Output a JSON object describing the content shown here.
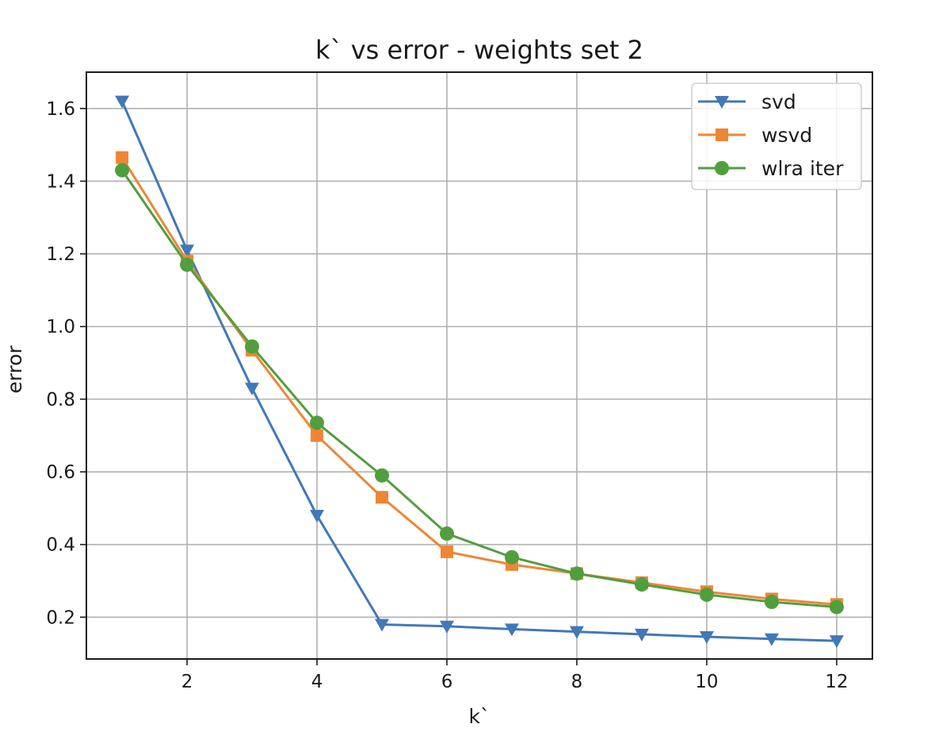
{
  "chart_data": {
    "type": "line",
    "title": "k` vs error - weights set 2",
    "xlabel": "k`",
    "ylabel": "error",
    "xlim": [
      0.45,
      12.55
    ],
    "ylim": [
      0.085,
      1.7
    ],
    "xticks": [
      2,
      4,
      6,
      8,
      10,
      12
    ],
    "yticks": [
      0.2,
      0.4,
      0.6,
      0.8,
      1.0,
      1.2,
      1.4,
      1.6
    ],
    "grid": true,
    "legend_position": "top-right",
    "x": [
      1,
      2,
      3,
      4,
      5,
      6,
      7,
      8,
      9,
      10,
      11,
      12
    ],
    "series": [
      {
        "name": "svd",
        "color": "#4178b8",
        "marker": "triangle-down",
        "values": [
          1.62,
          1.21,
          0.83,
          0.48,
          0.18,
          0.175,
          0.167,
          0.16,
          0.153,
          0.146,
          0.14,
          0.135
        ]
      },
      {
        "name": "wsvd",
        "color": "#ee8636",
        "marker": "square",
        "values": [
          1.465,
          1.18,
          0.935,
          0.7,
          0.53,
          0.38,
          0.345,
          0.32,
          0.295,
          0.27,
          0.25,
          0.235
        ]
      },
      {
        "name": "wlra iter",
        "color": "#519e3e",
        "marker": "circle",
        "values": [
          1.43,
          1.17,
          0.945,
          0.735,
          0.59,
          0.43,
          0.365,
          0.32,
          0.29,
          0.262,
          0.242,
          0.228
        ]
      }
    ]
  }
}
